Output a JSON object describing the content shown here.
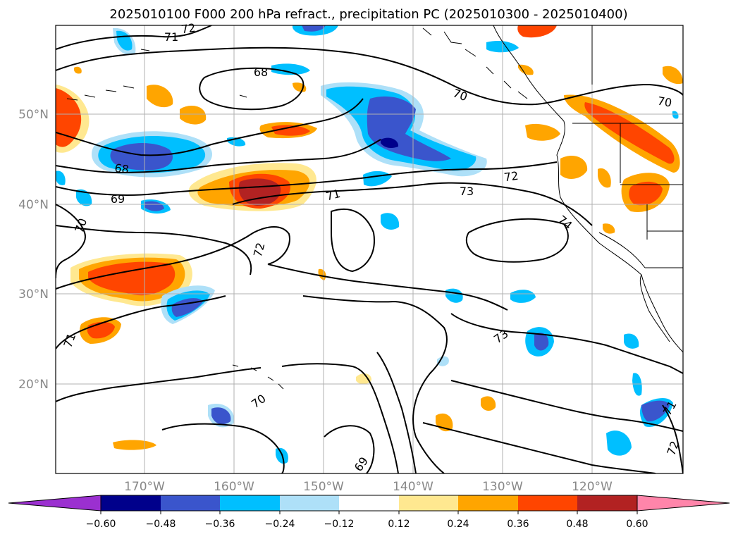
{
  "title": "2025010100 F000 200 hPa refract., precipitation PC (2025010300 - 2025010400)",
  "lat_labels": [
    "50°N",
    "40°N",
    "30°N",
    "20°N"
  ],
  "lon_labels": [
    "170°W",
    "160°W",
    "150°W",
    "140°W",
    "130°W",
    "120°W"
  ],
  "contour_labels": [
    "72",
    "71",
    "68",
    "70",
    "70",
    "68",
    "69",
    "70",
    "71",
    "72",
    "73",
    "74",
    "72",
    "71",
    "70",
    "73",
    "69",
    "71",
    "72"
  ],
  "colorbar": {
    "tick_labels": [
      "−0.60",
      "−0.48",
      "−0.36",
      "−0.24",
      "−0.12",
      "0.12",
      "0.24",
      "0.36",
      "0.48",
      "0.60"
    ],
    "colors": [
      "#9b30d0",
      "#00008b",
      "#3a55cc",
      "#00bfff",
      "#aee0f8",
      "#ffffff",
      "#ffe890",
      "#ffa500",
      "#ff4500",
      "#b22222",
      "#ff85aa"
    ]
  }
}
